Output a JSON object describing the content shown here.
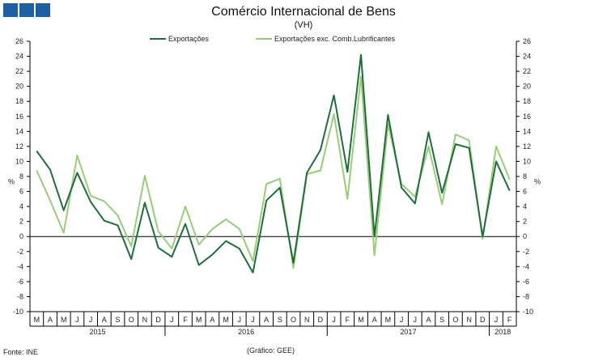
{
  "chart_data": {
    "type": "line",
    "title": "Comércio Internacional de Bens",
    "subtitle": "(VH)",
    "ylabel_left": "%",
    "ylabel_right": "%",
    "ylim": [
      -10,
      26
    ],
    "ytick_step": 2,
    "grid": false,
    "legend": "top-center",
    "categories": [
      "M",
      "A",
      "M",
      "J",
      "J",
      "A",
      "S",
      "O",
      "N",
      "D",
      "J",
      "F",
      "M",
      "A",
      "M",
      "J",
      "J",
      "A",
      "S",
      "O",
      "N",
      "D",
      "J",
      "F",
      "M",
      "A",
      "M",
      "J",
      "J",
      "A",
      "S",
      "O",
      "N",
      "D",
      "J",
      "F"
    ],
    "year_labels": [
      {
        "label": "2015",
        "start": 0,
        "end": 10
      },
      {
        "label": "2016",
        "start": 10,
        "end": 22
      },
      {
        "label": "2017",
        "start": 22,
        "end": 34
      },
      {
        "label": "2018",
        "start": 34,
        "end": 36
      }
    ],
    "series": [
      {
        "name": "Exportações",
        "color": "#1e6e3c",
        "values": [
          11.4,
          8.9,
          3.5,
          8.5,
          4.6,
          2.1,
          1.5,
          -3.0,
          4.5,
          -1.5,
          -2.7,
          1.7,
          -3.8,
          -2.4,
          -0.6,
          -1.6,
          -4.8,
          4.8,
          6.5,
          -3.5,
          8.5,
          11.5,
          18.8,
          8.6,
          24.2,
          0.0,
          16.2,
          6.5,
          4.4,
          13.9,
          5.8,
          12.3,
          11.8,
          0.0,
          10.0,
          6.1
        ]
      },
      {
        "name": "Exportações exc. Comb.Lubrificantes",
        "color": "#99cc77",
        "values": [
          8.8,
          4.8,
          0.5,
          10.8,
          5.4,
          4.7,
          2.8,
          -1.3,
          8.1,
          0.7,
          -1.6,
          4.0,
          -1.1,
          1.0,
          2.3,
          1.0,
          -3.3,
          7.0,
          7.7,
          -4.2,
          8.3,
          8.8,
          16.3,
          5.0,
          21.3,
          -2.5,
          15.0,
          7.0,
          5.3,
          12.0,
          4.3,
          13.6,
          12.8,
          -0.3,
          12.0,
          7.6
        ]
      }
    ]
  },
  "footer": {
    "source": "Fonte: INE",
    "credit": "(Gráfico: GEE)"
  },
  "colors": {
    "brand_squares": "#1f5fa6",
    "axis": "#000000"
  }
}
